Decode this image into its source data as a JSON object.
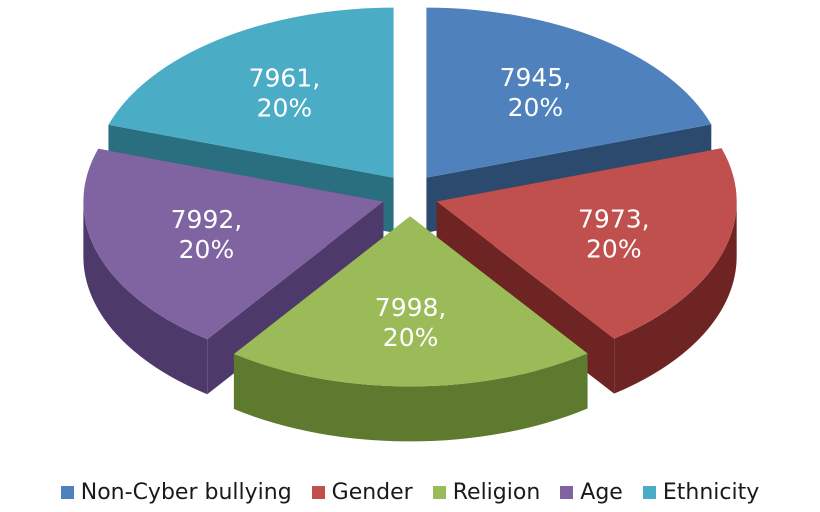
{
  "chart_data": {
    "type": "pie",
    "title": "",
    "exploded": true,
    "three_d": true,
    "legend_position": "bottom",
    "categories": [
      "Non-Cyber bullying",
      "Gender",
      "Religion",
      "Age",
      "Ethnicity"
    ],
    "values": [
      7945,
      7973,
      7998,
      7992,
      7961
    ],
    "percent_labels": [
      "20%",
      "20%",
      "20%",
      "20%",
      "20%"
    ],
    "data_labels": [
      "7945,",
      "7973,",
      "7998,",
      "7992,",
      "7961,"
    ],
    "colors": [
      "#4F81BD",
      "#C0504D",
      "#9BBB59",
      "#8064A2",
      "#4BACC6"
    ],
    "side_colors": [
      "#2C4A6E",
      "#6E2422",
      "#5E7A2E",
      "#4E3A6A",
      "#2A6F80"
    ]
  }
}
